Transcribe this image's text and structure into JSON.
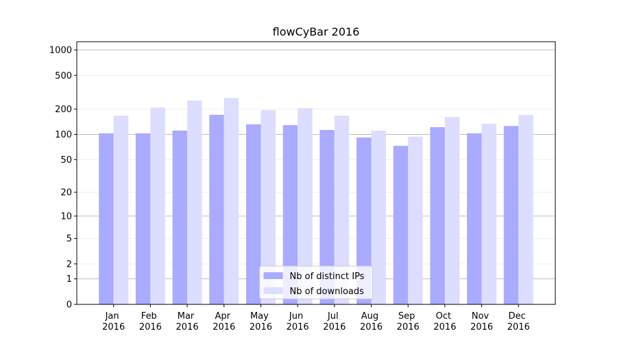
{
  "chart_data": {
    "type": "bar",
    "title": "flowCyBar 2016",
    "categories": [
      "Jan 2016",
      "Feb 2016",
      "Mar 2016",
      "Apr 2016",
      "May 2016",
      "Jun 2016",
      "Jul 2016",
      "Aug 2016",
      "Sep 2016",
      "Oct 2016",
      "Nov 2016",
      "Dec 2016"
    ],
    "series": [
      {
        "name": "Nb of distinct IPs",
        "color": "#aaaaff",
        "values": [
          103,
          103,
          111,
          171,
          132,
          129,
          113,
          92,
          73,
          122,
          103,
          126
        ]
      },
      {
        "name": "Nb of downloads",
        "color": "#ddddff",
        "values": [
          167,
          209,
          252,
          271,
          194,
          205,
          167,
          111,
          94,
          161,
          134,
          170
        ]
      }
    ],
    "yscale": "log1p",
    "ylim": [
      0,
      1250
    ],
    "yticks": [
      0,
      1,
      2,
      5,
      10,
      20,
      50,
      100,
      200,
      500,
      1000
    ],
    "grid": true,
    "legend": "lower center"
  }
}
